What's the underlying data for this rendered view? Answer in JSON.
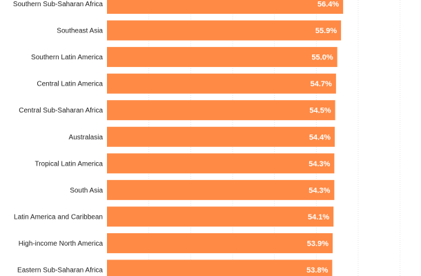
{
  "chart_data": {
    "type": "bar",
    "orientation": "horizontal",
    "categories": [
      "Southern Sub-Saharan Africa",
      "Southeast Asia",
      "Southern Latin America",
      "Central Latin America",
      "Central Sub-Saharan Africa",
      "Australasia",
      "Tropical Latin America",
      "South Asia",
      "Latin America and Caribbean",
      "High-income North America",
      "Eastern Sub-Saharan Africa"
    ],
    "values": [
      56.4,
      55.9,
      55.0,
      54.7,
      54.5,
      54.4,
      54.3,
      54.3,
      54.1,
      53.9,
      53.8
    ],
    "value_labels": [
      "56.4%",
      "55.9%",
      "55.0%",
      "54.7%",
      "54.5%",
      "54.4%",
      "54.3%",
      "54.3%",
      "54.1%",
      "53.9%",
      "53.8%"
    ],
    "xlim": [
      0,
      75
    ],
    "grid": true,
    "colors": {
      "bar": "#FF8A45",
      "value_text": "#ffffff",
      "category_text": "#222222",
      "grid": "#e6e6e6"
    }
  }
}
